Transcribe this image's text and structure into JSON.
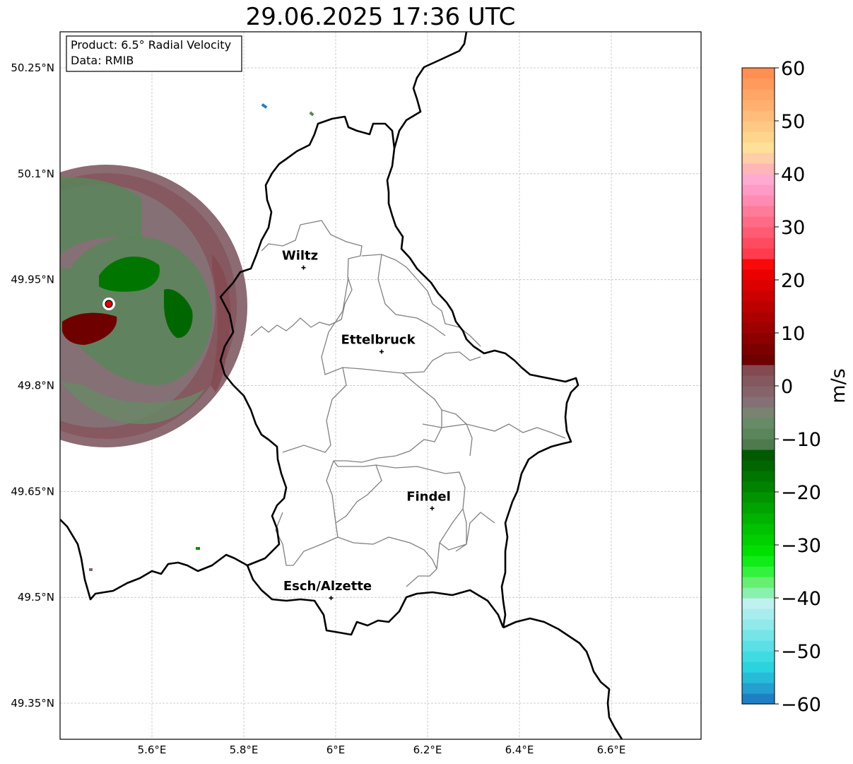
{
  "title": "29.06.2025 17:36 UTC",
  "info": {
    "product": "Product: 6.5° Radial Velocity",
    "source": "Data: RMIB"
  },
  "map": {
    "lon_range": [
      5.4,
      6.8
    ],
    "lat_range": [
      49.3,
      50.3
    ],
    "lat_ticks": [
      {
        "value": 50.25,
        "label": "50.25°N"
      },
      {
        "value": 50.1,
        "label": "50.1°N"
      },
      {
        "value": 49.95,
        "label": "49.95°N"
      },
      {
        "value": 49.8,
        "label": "49.8°N"
      },
      {
        "value": 49.65,
        "label": "49.65°N"
      },
      {
        "value": 49.5,
        "label": "49.5°N"
      },
      {
        "value": 49.35,
        "label": "49.35°N"
      }
    ],
    "lon_ticks": [
      {
        "value": 5.6,
        "label": "5.6°E"
      },
      {
        "value": 5.8,
        "label": "5.8°E"
      },
      {
        "value": 6.0,
        "label": "6°E"
      },
      {
        "value": 6.2,
        "label": "6.2°E"
      },
      {
        "value": 6.4,
        "label": "6.4°E"
      },
      {
        "value": 6.6,
        "label": "6.6°E"
      }
    ],
    "cities": [
      {
        "name": "Wiltz",
        "lon": 5.93,
        "lat": 49.967
      },
      {
        "name": "Ettelbruck",
        "lon": 6.1,
        "lat": 49.848
      },
      {
        "name": "Findel",
        "lon": 6.21,
        "lat": 49.626
      },
      {
        "name": "Esch/Alzette",
        "lon": 5.99,
        "lat": 49.499
      }
    ],
    "radar_site": {
      "lon": 5.506,
      "lat": 49.914
    },
    "border_color": "#000000",
    "canton_color": "#808080"
  },
  "colorbar": {
    "label": "m/s",
    "min": -60,
    "max": 60,
    "ticks": [
      {
        "value": 60,
        "label": "60"
      },
      {
        "value": 50,
        "label": "50"
      },
      {
        "value": 40,
        "label": "40"
      },
      {
        "value": 30,
        "label": "30"
      },
      {
        "value": 20,
        "label": "20"
      },
      {
        "value": 10,
        "label": "10"
      },
      {
        "value": 0,
        "label": "0"
      },
      {
        "value": -10,
        "label": "−10"
      },
      {
        "value": -20,
        "label": "−20"
      },
      {
        "value": -30,
        "label": "−30"
      },
      {
        "value": -40,
        "label": "−40"
      },
      {
        "value": -50,
        "label": "−50"
      },
      {
        "value": -60,
        "label": "−60"
      }
    ],
    "colors": [
      "#1f7fc4",
      "#23a0cf",
      "#26bcd8",
      "#2ad3de",
      "#40dbe2",
      "#5ae0e5",
      "#75e5e8",
      "#90e9eb",
      "#a8eded",
      "#bff1f0",
      "#8af0ad",
      "#67f070",
      "#33f23d",
      "#10ec16",
      "#00e000",
      "#00d000",
      "#00c200",
      "#00b300",
      "#00a300",
      "#009400",
      "#008400",
      "#007500",
      "#006700",
      "#005a00",
      "#4e7a4e",
      "#5b855b",
      "#678a67",
      "#7a8272",
      "#857076",
      "#86636a",
      "#85575e",
      "#844a52",
      "#6e0000",
      "#7d0000",
      "#8c0000",
      "#9c0000",
      "#ac0000",
      "#bc0000",
      "#cc0000",
      "#dc0000",
      "#ea0000",
      "#f80a0a",
      "#ff3b4e",
      "#ff4b60",
      "#ff5b72",
      "#ff6b86",
      "#ff7b9a",
      "#ff8bb2",
      "#ff9ac6",
      "#ffaad0",
      "#ffb6b6",
      "#ffcea8",
      "#ffe098",
      "#ffd58e",
      "#ffc884",
      "#ffbc7a",
      "#ffb070",
      "#ffa566",
      "#ff9a5c",
      "#ff8f52"
    ]
  }
}
